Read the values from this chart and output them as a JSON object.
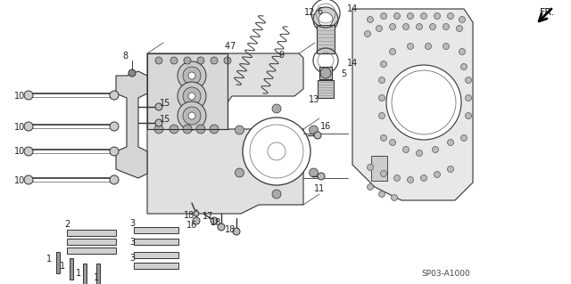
{
  "bg_color": "#ffffff",
  "part_code": "SP03-A1000",
  "line_color": "#333333",
  "label_fontsize": 7,
  "label_color": "#222222",
  "figsize": [
    6.4,
    3.19
  ],
  "dpi": 100
}
